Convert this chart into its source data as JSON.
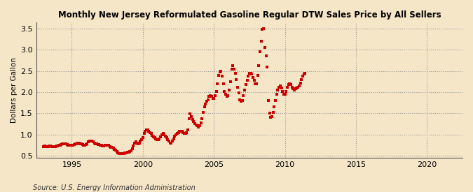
{
  "title": "Monthly New Jersey Reformulated Gasoline Regular DTW Sales Price by All Sellers",
  "ylabel": "Dollars per Gallon",
  "source": "Source: U.S. Energy Information Administration",
  "bg_color": "#f5e6c8",
  "plot_bg_color": "#f5e6c8",
  "marker_color": "#cc0000",
  "xlim": [
    1992.5,
    2022.5
  ],
  "ylim": [
    0.45,
    3.65
  ],
  "yticks": [
    0.5,
    1.0,
    1.5,
    2.0,
    2.5,
    3.0,
    3.5
  ],
  "xticks": [
    1995,
    2000,
    2005,
    2010,
    2015,
    2020
  ],
  "data": {
    "dates": [
      1993.0,
      1993.083,
      1993.167,
      1993.25,
      1993.333,
      1993.417,
      1993.5,
      1993.583,
      1993.667,
      1993.75,
      1993.833,
      1993.917,
      1994.0,
      1994.083,
      1994.167,
      1994.25,
      1994.333,
      1994.417,
      1994.5,
      1994.583,
      1994.667,
      1994.75,
      1994.833,
      1994.917,
      1995.0,
      1995.083,
      1995.167,
      1995.25,
      1995.333,
      1995.417,
      1995.5,
      1995.583,
      1995.667,
      1995.75,
      1995.833,
      1995.917,
      1996.0,
      1996.083,
      1996.167,
      1996.25,
      1996.333,
      1996.417,
      1996.5,
      1996.583,
      1996.667,
      1996.75,
      1996.833,
      1996.917,
      1997.0,
      1997.083,
      1997.167,
      1997.25,
      1997.333,
      1997.417,
      1997.5,
      1997.583,
      1997.667,
      1997.75,
      1997.833,
      1997.917,
      1998.0,
      1998.083,
      1998.167,
      1998.25,
      1998.333,
      1998.417,
      1998.5,
      1998.583,
      1998.667,
      1998.75,
      1998.833,
      1998.917,
      1999.0,
      1999.083,
      1999.167,
      1999.25,
      1999.333,
      1999.417,
      1999.5,
      1999.583,
      1999.667,
      1999.75,
      1999.833,
      1999.917,
      2000.0,
      2000.083,
      2000.167,
      2000.25,
      2000.333,
      2000.417,
      2000.5,
      2000.583,
      2000.667,
      2000.75,
      2000.833,
      2000.917,
      2001.0,
      2001.083,
      2001.167,
      2001.25,
      2001.333,
      2001.417,
      2001.5,
      2001.583,
      2001.667,
      2001.75,
      2001.833,
      2001.917,
      2002.0,
      2002.083,
      2002.167,
      2002.25,
      2002.333,
      2002.417,
      2002.5,
      2002.583,
      2002.667,
      2002.75,
      2002.833,
      2002.917,
      2003.0,
      2003.083,
      2003.167,
      2003.25,
      2003.333,
      2003.417,
      2003.5,
      2003.583,
      2003.667,
      2003.75,
      2003.833,
      2003.917,
      2004.0,
      2004.083,
      2004.167,
      2004.25,
      2004.333,
      2004.417,
      2004.5,
      2004.583,
      2004.667,
      2004.75,
      2004.833,
      2004.917,
      2005.0,
      2005.083,
      2005.167,
      2005.25,
      2005.333,
      2005.417,
      2005.5,
      2005.583,
      2005.667,
      2005.75,
      2005.833,
      2005.917,
      2006.0,
      2006.083,
      2006.167,
      2006.25,
      2006.333,
      2006.417,
      2006.5,
      2006.583,
      2006.667,
      2006.75,
      2006.833,
      2006.917,
      2007.0,
      2007.083,
      2007.167,
      2007.25,
      2007.333,
      2007.417,
      2007.5,
      2007.583,
      2007.667,
      2007.75,
      2007.833,
      2007.917,
      2008.0,
      2008.083,
      2008.167,
      2008.25,
      2008.333,
      2008.417,
      2008.5,
      2008.583,
      2008.667,
      2008.75,
      2008.833,
      2008.917,
      2009.0,
      2009.083,
      2009.167,
      2009.25,
      2009.333,
      2009.417,
      2009.5,
      2009.583,
      2009.667,
      2009.75,
      2009.833,
      2009.917,
      2010.0,
      2010.083,
      2010.167,
      2010.25,
      2010.333,
      2010.417,
      2010.5,
      2010.583,
      2010.667,
      2010.75,
      2010.833,
      2010.917,
      2011.0,
      2011.083,
      2011.167,
      2011.25,
      2011.333,
      2011.417
    ],
    "values": [
      0.72,
      0.73,
      0.72,
      0.71,
      0.72,
      0.73,
      0.73,
      0.72,
      0.71,
      0.71,
      0.72,
      0.73,
      0.73,
      0.74,
      0.75,
      0.76,
      0.77,
      0.78,
      0.78,
      0.77,
      0.76,
      0.75,
      0.75,
      0.74,
      0.74,
      0.75,
      0.76,
      0.77,
      0.78,
      0.79,
      0.79,
      0.78,
      0.77,
      0.76,
      0.75,
      0.74,
      0.76,
      0.78,
      0.82,
      0.85,
      0.85,
      0.84,
      0.82,
      0.8,
      0.78,
      0.77,
      0.76,
      0.76,
      0.75,
      0.74,
      0.73,
      0.73,
      0.74,
      0.75,
      0.75,
      0.74,
      0.72,
      0.7,
      0.69,
      0.68,
      0.65,
      0.63,
      0.6,
      0.57,
      0.55,
      0.54,
      0.54,
      0.55,
      0.55,
      0.56,
      0.57,
      0.58,
      0.58,
      0.59,
      0.62,
      0.67,
      0.73,
      0.8,
      0.82,
      0.8,
      0.78,
      0.8,
      0.85,
      0.88,
      0.92,
      1.02,
      1.08,
      1.1,
      1.1,
      1.08,
      1.05,
      1.02,
      0.98,
      0.95,
      0.92,
      0.9,
      0.88,
      0.88,
      0.9,
      0.95,
      1.0,
      1.02,
      1.0,
      0.96,
      0.92,
      0.88,
      0.84,
      0.8,
      0.8,
      0.84,
      0.9,
      0.96,
      1.0,
      1.02,
      1.05,
      1.07,
      1.08,
      1.07,
      1.05,
      1.02,
      1.02,
      1.05,
      1.1,
      1.38,
      1.48,
      1.42,
      1.35,
      1.3,
      1.25,
      1.22,
      1.2,
      1.18,
      1.2,
      1.28,
      1.38,
      1.52,
      1.65,
      1.72,
      1.78,
      1.82,
      1.9,
      1.92,
      1.9,
      1.85,
      1.85,
      1.92,
      2.02,
      2.2,
      2.4,
      2.48,
      2.5,
      2.38,
      2.2,
      2.02,
      1.95,
      1.9,
      1.92,
      2.05,
      2.25,
      2.55,
      2.62,
      2.55,
      2.45,
      2.3,
      2.12,
      1.98,
      1.82,
      1.78,
      1.8,
      1.92,
      2.05,
      2.18,
      2.28,
      2.38,
      2.45,
      2.45,
      2.42,
      2.35,
      2.28,
      2.2,
      2.2,
      2.4,
      2.62,
      2.95,
      3.2,
      3.48,
      3.5,
      3.05,
      2.85,
      2.6,
      1.8,
      1.5,
      1.4,
      1.42,
      1.52,
      1.65,
      1.8,
      1.95,
      2.05,
      2.12,
      2.15,
      2.1,
      2.02,
      1.95,
      1.95,
      2.02,
      2.12,
      2.18,
      2.2,
      2.18,
      2.12,
      2.08,
      2.05,
      2.08,
      2.1,
      2.12,
      2.15,
      2.22,
      2.3,
      2.38,
      2.42,
      2.45
    ]
  }
}
